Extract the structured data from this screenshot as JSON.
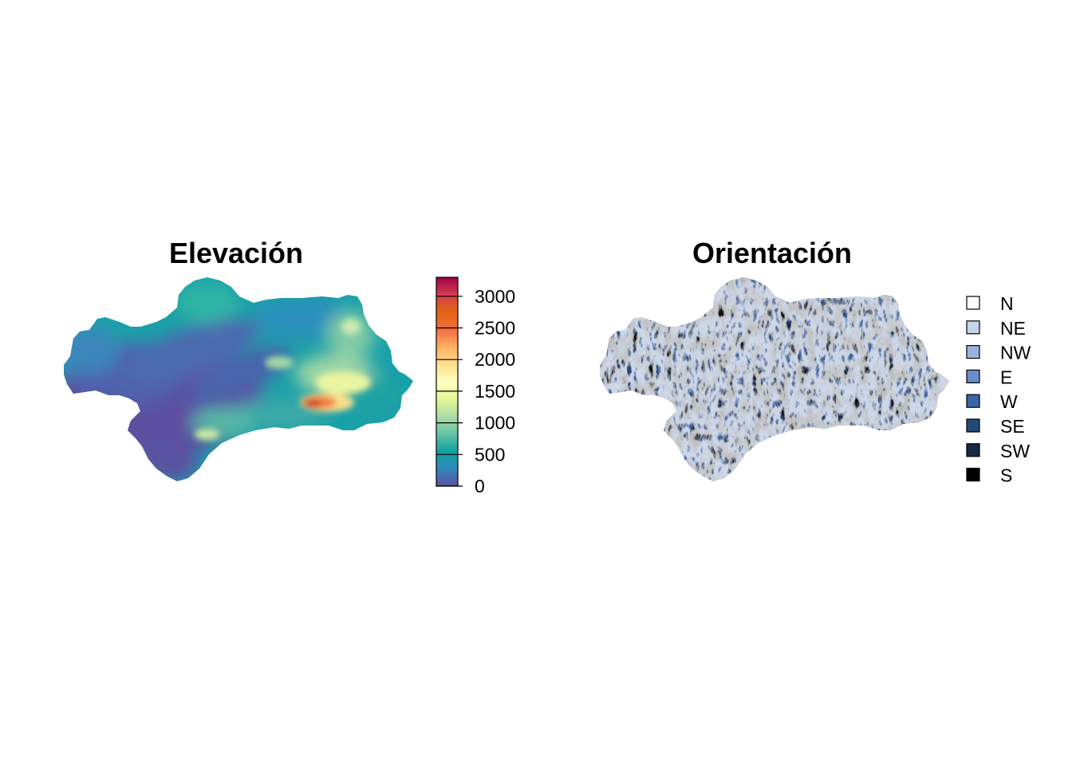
{
  "panels": [
    {
      "title": "Elevación",
      "legend_type": "continuous",
      "colorbar": {
        "min": 0,
        "max": 3300,
        "ticks": [
          {
            "value": 0,
            "label": "0"
          },
          {
            "value": 500,
            "label": "500"
          },
          {
            "value": 1000,
            "label": "1000"
          },
          {
            "value": 1500,
            "label": "1500"
          },
          {
            "value": 2000,
            "label": "2000"
          },
          {
            "value": 2500,
            "label": "2500"
          },
          {
            "value": 3000,
            "label": "3000"
          }
        ],
        "palette": [
          "#5e4fa2",
          "#3288bd",
          "#0fa3a0",
          "#66c2a5",
          "#abdda4",
          "#e6f598",
          "#ffffbf",
          "#fee08b",
          "#fdae61",
          "#f46d43",
          "#e06410",
          "#d53e4f",
          "#9e0142"
        ]
      }
    },
    {
      "title": "Orientación",
      "legend_type": "categorical",
      "categories": [
        {
          "label": "N",
          "color": "#ffffff"
        },
        {
          "label": "NE",
          "color": "#c6d3ec"
        },
        {
          "label": "NW",
          "color": "#9db2db"
        },
        {
          "label": "E",
          "color": "#6a8dc9"
        },
        {
          "label": "W",
          "color": "#3b65ab"
        },
        {
          "label": "SE",
          "color": "#264877"
        },
        {
          "label": "SW",
          "color": "#172944"
        },
        {
          "label": "S",
          "color": "#000000"
        }
      ]
    }
  ]
}
